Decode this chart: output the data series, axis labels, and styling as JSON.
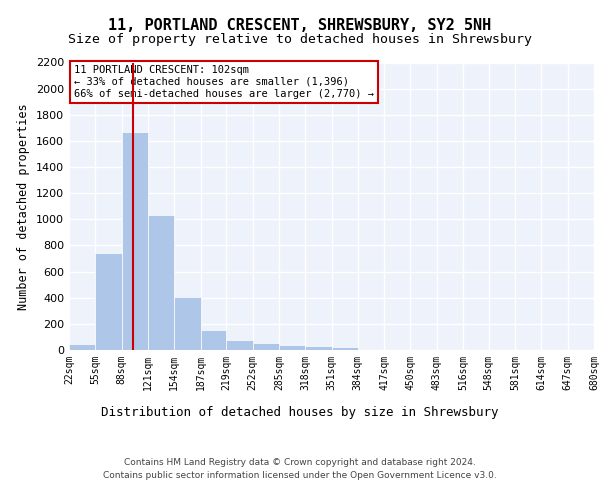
{
  "title": "11, PORTLAND CRESCENT, SHREWSBURY, SY2 5NH",
  "subtitle": "Size of property relative to detached houses in Shrewsbury",
  "xlabel": "Distribution of detached houses by size in Shrewsbury",
  "ylabel": "Number of detached properties",
  "bar_values": [
    45,
    740,
    1670,
    1030,
    405,
    155,
    80,
    50,
    35,
    30,
    20,
    0,
    0,
    0,
    0,
    0,
    0,
    0,
    0,
    0
  ],
  "bin_edges": [
    22,
    55,
    88,
    121,
    154,
    187,
    219,
    252,
    285,
    318,
    351,
    384,
    417,
    450,
    483,
    516,
    548,
    581,
    614,
    647,
    680
  ],
  "bar_color": "#aec6e8",
  "bar_edge_color": "#ffffff",
  "background_color": "#eef2fb",
  "grid_color": "#ffffff",
  "red_line_x": 102,
  "annotation_text": "11 PORTLAND CRESCENT: 102sqm\n← 33% of detached houses are smaller (1,396)\n66% of semi-detached houses are larger (2,770) →",
  "annotation_box_color": "#ffffff",
  "annotation_box_edge": "#cc0000",
  "ylim": [
    0,
    2200
  ],
  "yticks": [
    0,
    200,
    400,
    600,
    800,
    1000,
    1200,
    1400,
    1600,
    1800,
    2000,
    2200
  ],
  "footer_line1": "Contains HM Land Registry data © Crown copyright and database right 2024.",
  "footer_line2": "Contains public sector information licensed under the Open Government Licence v3.0.",
  "title_fontsize": 11,
  "subtitle_fontsize": 9.5,
  "tick_label_fontsize": 7,
  "ylabel_fontsize": 8.5,
  "xlabel_fontsize": 9,
  "footer_fontsize": 6.5
}
